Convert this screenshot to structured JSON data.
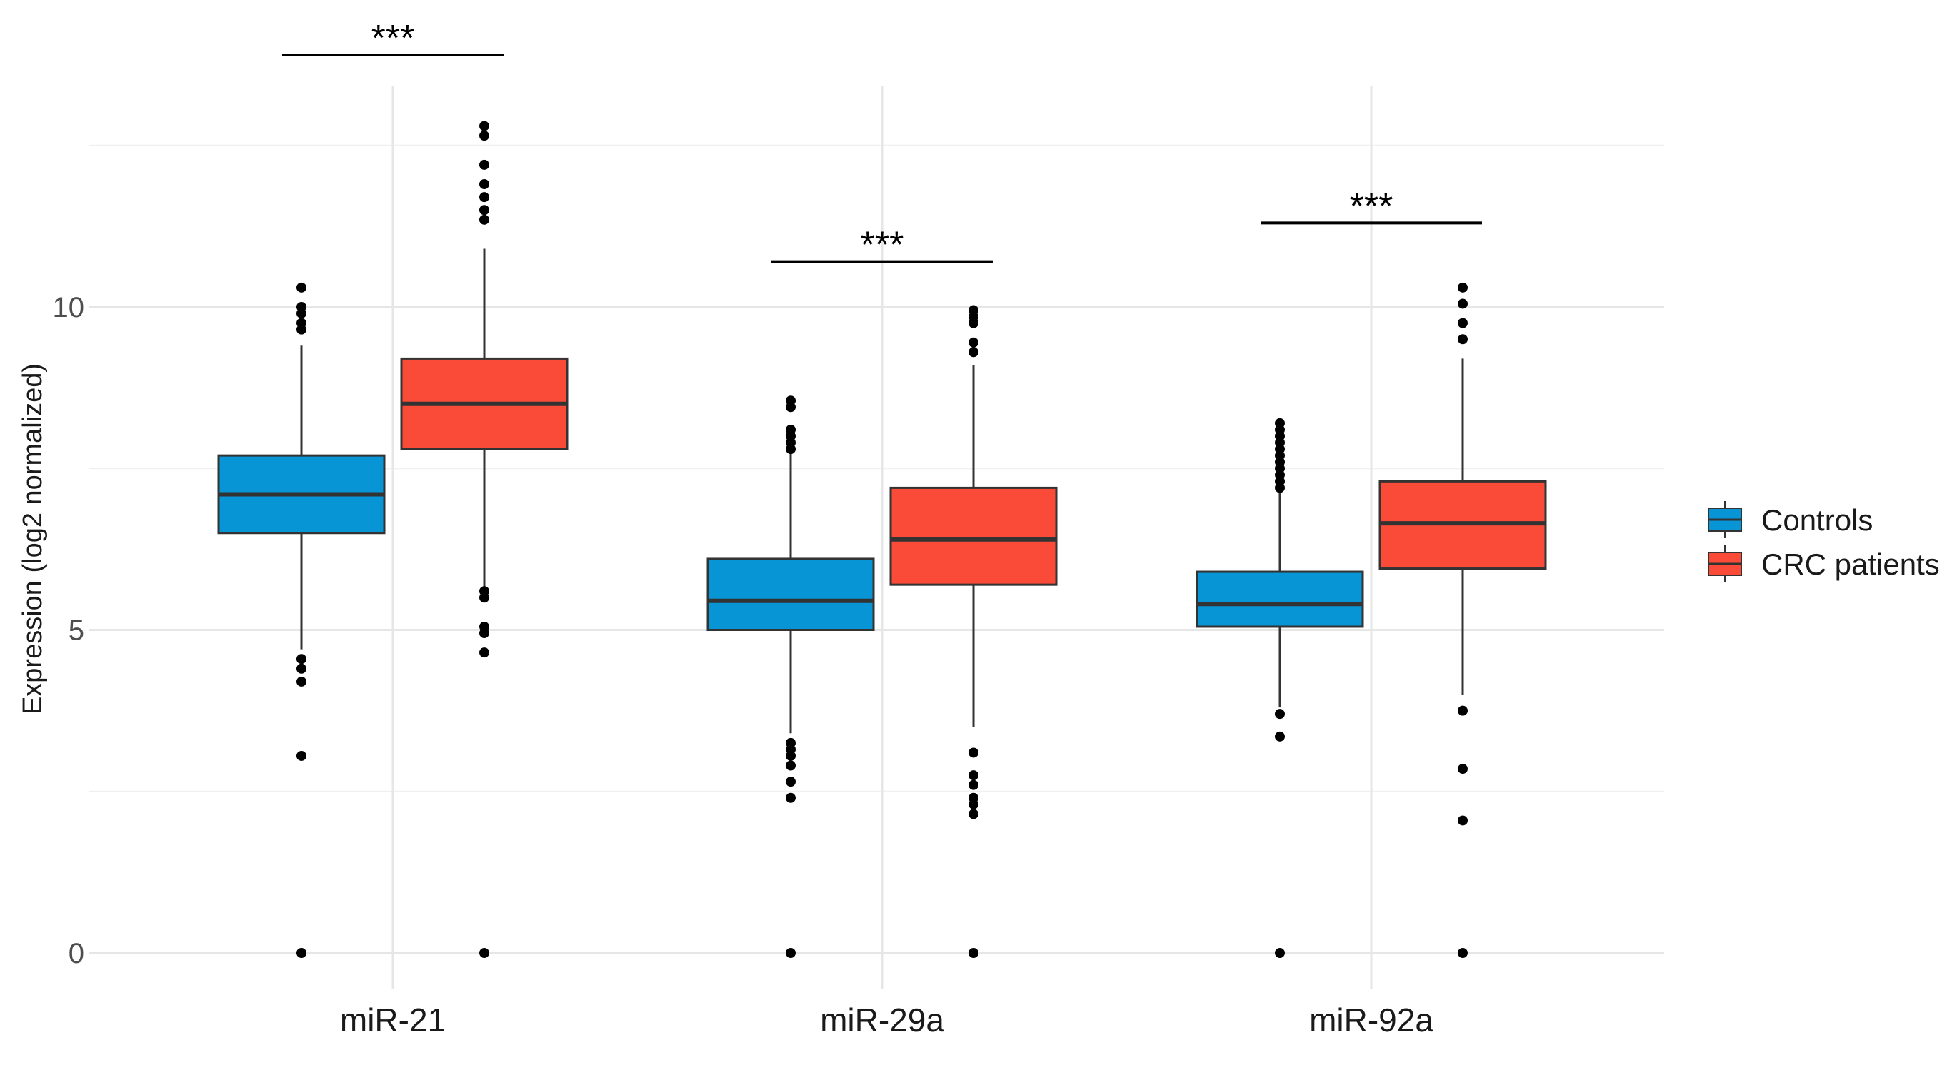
{
  "chart_data": {
    "type": "boxplot",
    "title": "",
    "xlabel": "",
    "ylabel": "Expression (log2 normalized)",
    "ylim": [
      -0.5,
      13.7
    ],
    "yticks": [
      0,
      5,
      10
    ],
    "grid": true,
    "legend_position": "right",
    "categories": [
      "miR-21",
      "miR-29a",
      "miR-92a"
    ],
    "series": [
      {
        "name": "Controls",
        "color": "#0795D6",
        "boxes": [
          {
            "min": 4.7,
            "q1": 6.5,
            "median": 7.1,
            "q3": 7.7,
            "max": 9.4,
            "outliers": [
              10.3,
              10.0,
              9.9,
              9.75,
              9.65,
              4.55,
              4.4,
              4.2,
              3.05,
              0
            ]
          },
          {
            "min": 3.4,
            "q1": 5.0,
            "median": 5.45,
            "q3": 6.1,
            "max": 7.8,
            "outliers": [
              8.55,
              8.45,
              8.1,
              8.0,
              7.9,
              7.8,
              3.25,
              3.15,
              3.05,
              2.9,
              2.65,
              2.4,
              0
            ]
          },
          {
            "min": 3.8,
            "q1": 5.05,
            "median": 5.4,
            "q3": 5.9,
            "max": 7.2,
            "outliers": [
              8.2,
              8.1,
              8.0,
              7.9,
              7.8,
              7.7,
              7.6,
              7.5,
              7.4,
              7.3,
              7.2,
              3.7,
              3.35,
              0
            ]
          }
        ]
      },
      {
        "name": "CRC patients",
        "color": "#F94B37",
        "boxes": [
          {
            "min": 5.6,
            "q1": 7.8,
            "median": 8.5,
            "q3": 9.2,
            "max": 10.9,
            "outliers": [
              12.8,
              12.65,
              12.2,
              11.9,
              11.7,
              11.5,
              11.35,
              5.6,
              5.5,
              5.05,
              4.95,
              4.65,
              0
            ]
          },
          {
            "min": 3.5,
            "q1": 5.7,
            "median": 6.4,
            "q3": 7.2,
            "max": 9.1,
            "outliers": [
              9.95,
              9.85,
              9.75,
              9.45,
              9.3,
              3.1,
              2.75,
              2.6,
              2.4,
              2.3,
              2.15,
              0
            ]
          },
          {
            "min": 4.0,
            "q1": 5.95,
            "median": 6.65,
            "q3": 7.3,
            "max": 9.2,
            "outliers": [
              10.3,
              10.05,
              9.75,
              9.5,
              3.75,
              2.85,
              2.05,
              0
            ]
          }
        ]
      }
    ],
    "annotations": [
      {
        "category": "miR-21",
        "label": "***",
        "y": 13.9
      },
      {
        "category": "miR-29a",
        "label": "***",
        "y": 10.7
      },
      {
        "category": "miR-92a",
        "label": "***",
        "y": 11.3
      }
    ]
  }
}
